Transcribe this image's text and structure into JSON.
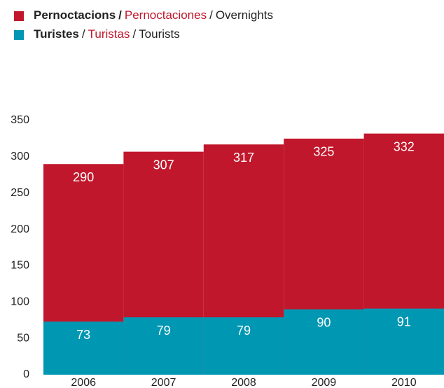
{
  "chart_data": {
    "type": "bar",
    "categories": [
      "2006",
      "2007",
      "2008",
      "2009",
      "2010"
    ],
    "separator": "/",
    "series": [
      {
        "name": "Pernoctacions",
        "name_es": "Pernoctaciones",
        "name_en": "Overnights",
        "color": "#c1172c",
        "values": [
          290,
          307,
          317,
          325,
          332
        ]
      },
      {
        "name": "Turistes",
        "name_es": "Turistas",
        "name_en": "Tourists",
        "color": "#0097b3",
        "values": [
          73,
          79,
          79,
          90,
          91
        ]
      }
    ],
    "ylim": [
      0,
      350
    ],
    "yticks": [
      0,
      50,
      100,
      150,
      200,
      250,
      300,
      350
    ],
    "grid": false
  }
}
